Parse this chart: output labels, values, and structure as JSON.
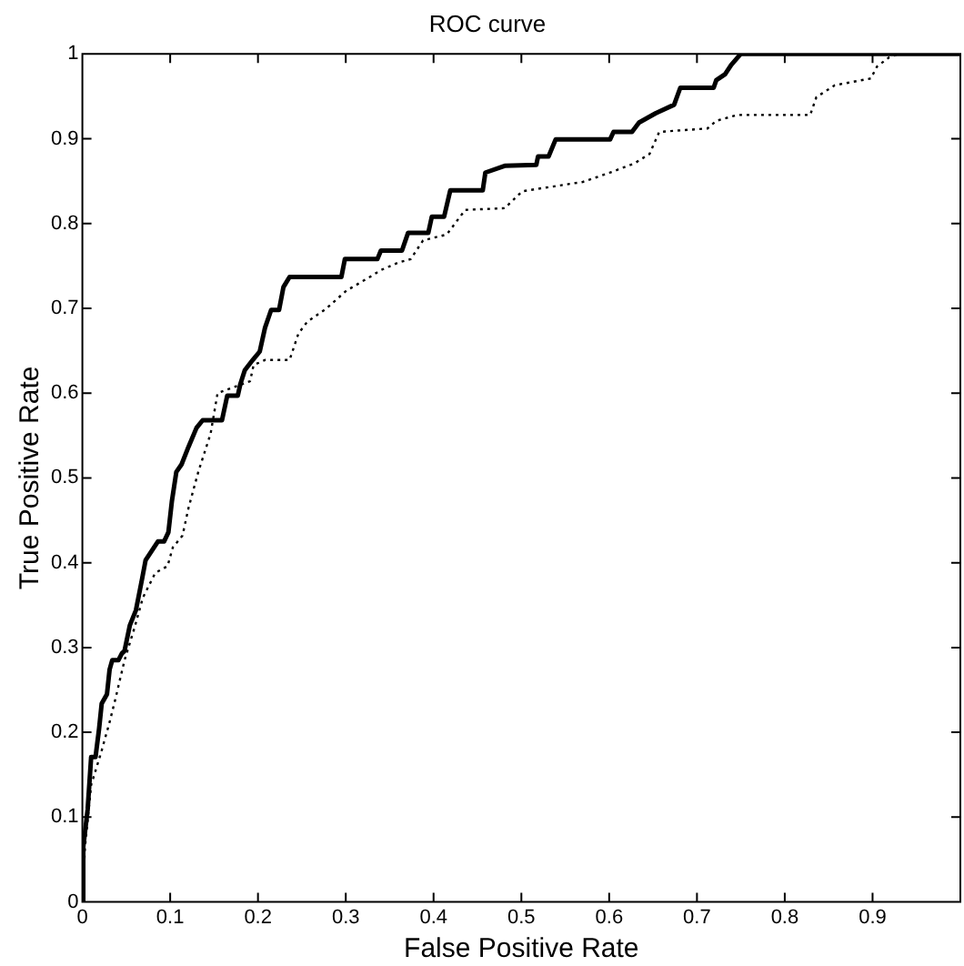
{
  "chart_data": {
    "type": "line",
    "title": "ROC curve",
    "xlabel": "False Positive Rate",
    "ylabel": "True Positive Rate",
    "xlim": [
      0,
      1
    ],
    "ylim": [
      0,
      1
    ],
    "xticks": [
      0,
      0.1,
      0.2,
      0.3,
      0.4,
      0.5,
      0.6,
      0.7,
      0.8,
      0.9
    ],
    "yticks": [
      0,
      0.1,
      0.2,
      0.3,
      0.4,
      0.5,
      0.6,
      0.7,
      0.8,
      0.9,
      1
    ],
    "grid": false,
    "marker": "none",
    "series": [
      {
        "color": "#000000",
        "line_style": "solid",
        "x": [
          0,
          0.001,
          0.006,
          0.01,
          0.015,
          0.019,
          0.022,
          0.028,
          0.031,
          0.034,
          0.041,
          0.045,
          0.048,
          0.054,
          0.061,
          0.068,
          0.072,
          0.079,
          0.086,
          0.093,
          0.098,
          0.102,
          0.107,
          0.113,
          0.121,
          0.13,
          0.137,
          0.159,
          0.165,
          0.177,
          0.18,
          0.185,
          0.194,
          0.202,
          0.208,
          0.215,
          0.224,
          0.229,
          0.236,
          0.295,
          0.299,
          0.336,
          0.34,
          0.364,
          0.371,
          0.394,
          0.398,
          0.412,
          0.419,
          0.456,
          0.459,
          0.481,
          0.517,
          0.519,
          0.531,
          0.539,
          0.601,
          0.605,
          0.626,
          0.634,
          0.653,
          0.674,
          0.681,
          0.719,
          0.722,
          0.732,
          0.739,
          0.75,
          1
        ],
        "values": [
          0,
          0.065,
          0.109,
          0.171,
          0.171,
          0.204,
          0.234,
          0.245,
          0.274,
          0.285,
          0.285,
          0.293,
          0.296,
          0.326,
          0.344,
          0.381,
          0.403,
          0.414,
          0.425,
          0.425,
          0.436,
          0.473,
          0.507,
          0.516,
          0.537,
          0.559,
          0.568,
          0.568,
          0.597,
          0.597,
          0.611,
          0.627,
          0.639,
          0.649,
          0.677,
          0.698,
          0.698,
          0.725,
          0.737,
          0.737,
          0.758,
          0.758,
          0.768,
          0.768,
          0.789,
          0.789,
          0.808,
          0.808,
          0.839,
          0.839,
          0.86,
          0.868,
          0.869,
          0.879,
          0.879,
          0.899,
          0.899,
          0.908,
          0.908,
          0.919,
          0.93,
          0.94,
          0.96,
          0.96,
          0.969,
          0.976,
          0.987,
          1,
          1
        ]
      },
      {
        "color": "#000000",
        "line_style": "dotted",
        "x": [
          0,
          0.003,
          0.01,
          0.021,
          0.031,
          0.038,
          0.048,
          0.059,
          0.069,
          0.083,
          0.097,
          0.103,
          0.114,
          0.121,
          0.132,
          0.146,
          0.154,
          0.191,
          0.195,
          0.208,
          0.236,
          0.246,
          0.256,
          0.277,
          0.301,
          0.326,
          0.34,
          0.36,
          0.374,
          0.388,
          0.415,
          0.436,
          0.481,
          0.501,
          0.57,
          0.601,
          0.629,
          0.646,
          0.657,
          0.712,
          0.722,
          0.746,
          0.829,
          0.836,
          0.857,
          0.898,
          0.905,
          0.919,
          0.93,
          1
        ],
        "values": [
          0,
          0.065,
          0.138,
          0.175,
          0.212,
          0.241,
          0.285,
          0.322,
          0.359,
          0.388,
          0.396,
          0.418,
          0.432,
          0.465,
          0.507,
          0.552,
          0.6,
          0.614,
          0.633,
          0.639,
          0.639,
          0.67,
          0.684,
          0.699,
          0.721,
          0.736,
          0.745,
          0.754,
          0.758,
          0.78,
          0.787,
          0.816,
          0.818,
          0.838,
          0.849,
          0.86,
          0.871,
          0.882,
          0.908,
          0.912,
          0.921,
          0.928,
          0.928,
          0.949,
          0.963,
          0.971,
          0.985,
          0.996,
          1,
          1
        ]
      }
    ]
  }
}
